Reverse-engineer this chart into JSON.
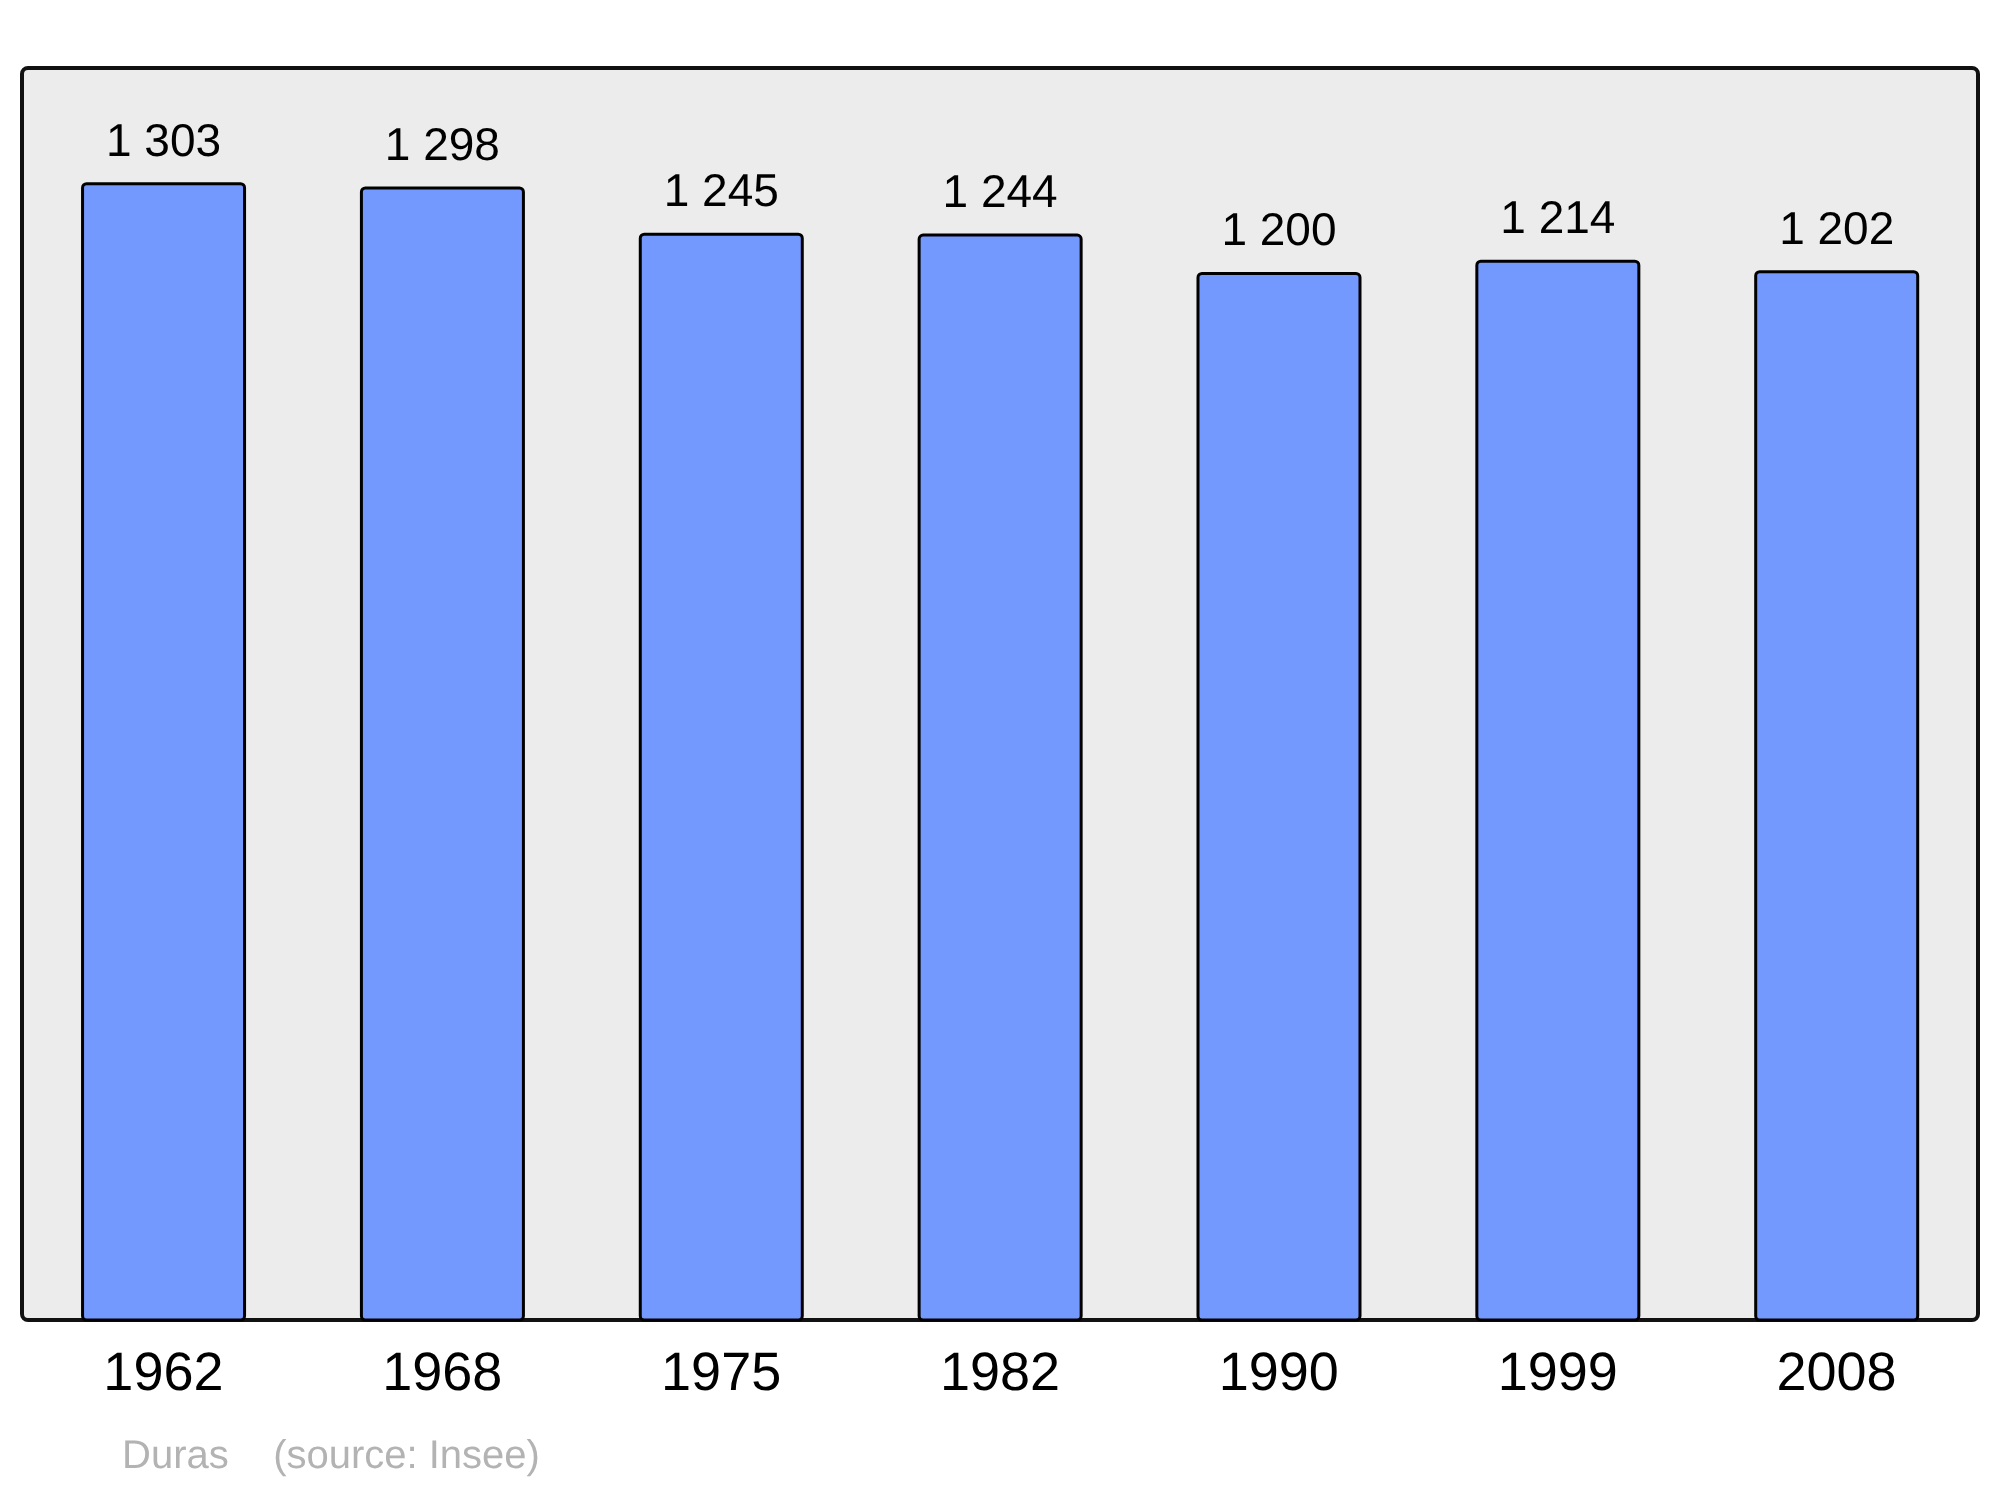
{
  "chart_data": {
    "type": "bar",
    "categories": [
      "1962",
      "1968",
      "1975",
      "1982",
      "1990",
      "1999",
      "2008"
    ],
    "values": [
      1303,
      1298,
      1245,
      1244,
      1200,
      1214,
      1202
    ],
    "value_labels": [
      "1 303",
      "1 298",
      "1 245",
      "1 244",
      "1 200",
      "1 214",
      "1 202"
    ],
    "color": "#7399ff",
    "annotations": [
      "Duras    (source: Insee)"
    ]
  }
}
